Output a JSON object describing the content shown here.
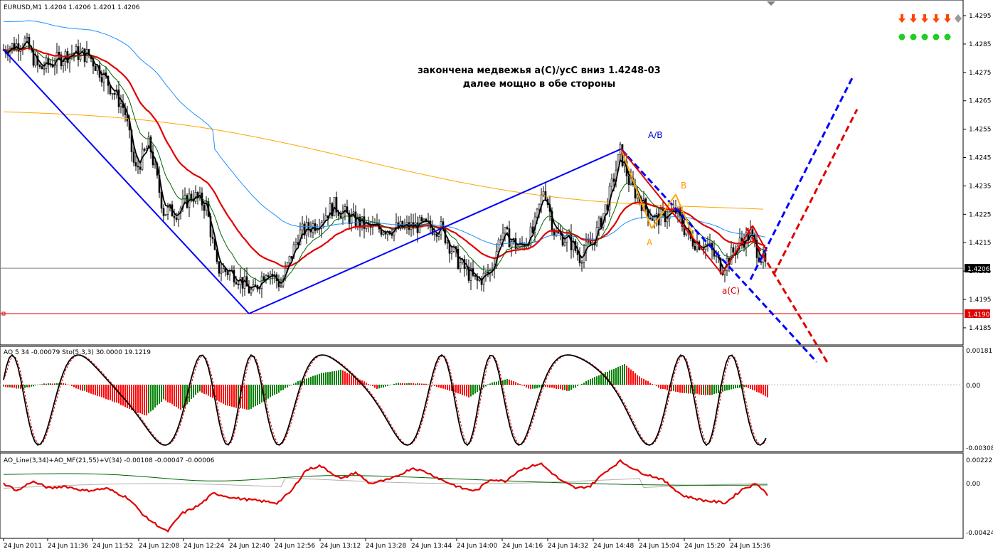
{
  "window": {
    "title_line": "EURUSD,M1  1.4204 1.4206 1.4201 1.4206"
  },
  "annotations": {
    "main_text_line1": "закончена медвежья a(C)/ycC вниз 1.4248-03",
    "main_text_line2": "далее мощно в обе стороны",
    "wave_AB": "A/B",
    "wave_A": "A",
    "wave_B": "B",
    "wave_aC": "a(C)"
  },
  "price_axis": {
    "ticks": [
      "1.4295",
      "1.4285",
      "1.4275",
      "1.4265",
      "1.4255",
      "1.4245",
      "1.4235",
      "1.4225",
      "1.4215",
      "1.4205",
      "1.4195",
      "1.4185"
    ],
    "current_price": "1.4206",
    "level_price": "1.4190"
  },
  "time_axis": {
    "ticks": [
      "24 Jun 2011",
      "24 Jun 11:36",
      "24 Jun 11:52",
      "24 Jun 12:08",
      "24 Jun 12:24",
      "24 Jun 12:40",
      "24 Jun 12:56",
      "24 Jun 13:12",
      "24 Jun 13:28",
      "24 Jun 13:44",
      "24 Jun 14:00",
      "24 Jun 14:16",
      "24 Jun 14:32",
      "24 Jun 14:48",
      "24 Jun 15:04",
      "24 Jun 15:20",
      "24 Jun 15:36"
    ]
  },
  "indicator1": {
    "label": "AO 5 34 -0.00079  Sto(5,3,3) 30.0000 19.1219",
    "axis_top": "0.00181",
    "axis_mid": "0.00",
    "axis_bottom": "-0.00308"
  },
  "indicator2": {
    "label": "AO_Line(3,34)+AO_MF(21,55)+V(34) -0.00108 -0.00047 -0.00006",
    "axis_top": "0.00222",
    "axis_mid": "0.00",
    "axis_bottom": "-0.00424"
  },
  "signals": {
    "arrows": [
      "down-arrow-icon",
      "down-arrow-icon",
      "down-arrow-icon",
      "down-arrow-icon",
      "down-arrow-icon"
    ],
    "dots": [
      "green-dot",
      "green-dot",
      "green-dot",
      "green-dot",
      "green-dot"
    ],
    "arrow_color": "#ff4500",
    "dot_color": "#22cc22"
  },
  "colors": {
    "up_bar": "#008000",
    "down_bar": "#ff0000",
    "trend_blue": "#0000ff",
    "ma_red": "#e00000",
    "ma_orange": "#ffa500",
    "ma_skyblue": "#1e90ff",
    "ma_green": "#006400",
    "level_red": "#e00000"
  },
  "chart_data": [
    {
      "type": "line",
      "title": "",
      "series": [
        {
          "name": "EURUSD,M1",
          "x": [
            "24 Jun 2011",
            "24 Jun 11:36",
            "24 Jun 11:52",
            "24 Jun 12:08",
            "24 Jun 12:24",
            "24 Jun 12:40",
            "24 Jun 12:56",
            "24 Jun 13:12",
            "24 Jun 13:28",
            "24 Jun 13:44",
            "24 Jun 14:00",
            "24 Jun 14:16",
            "24 Jun 14:32",
            "24 Jun 14:48",
            "24 Jun 15:04",
            "24 Jun 15:20",
            "24 Jun 15:36"
          ],
          "values": [
            1.428,
            1.4282,
            1.4272,
            1.424,
            1.4228,
            1.4205,
            1.4212,
            1.4226,
            1.422,
            1.422,
            1.4203,
            1.423,
            1.421,
            1.4244,
            1.4222,
            1.4206,
            1.4206
          ]
        }
      ],
      "ylim": [
        1.4181,
        1.4301
      ],
      "levels": [
        1.4206,
        1.419
      ]
    },
    {
      "type": "bar",
      "title": "",
      "series": [
        {
          "name": "AO",
          "values": [
            -0.0001,
            2e-05,
            -0.00015,
            -0.0012,
            -0.0007,
            -0.00085,
            -0.0006,
            0.0006,
            -0.0001,
            -8e-05,
            -0.0003,
            0.00045,
            -0.0002,
            0.0011,
            -0.00045,
            -0.0004,
            -0.00079
          ]
        }
      ],
      "ylim": [
        -0.00308,
        0.00181
      ]
    },
    {
      "type": "line",
      "title": "",
      "series": [
        {
          "name": "AO_Line",
          "values": [
            0.0,
            0.0,
            -0.001,
            -0.0038,
            -0.002,
            -0.0012,
            -0.0005,
            0.0012,
            0.001,
            0.0005,
            0.0005,
            0.0012,
            -0.0003,
            0.0015,
            -0.0004,
            -0.0008,
            -0.00108
          ]
        }
      ],
      "ylim": [
        -0.00424,
        0.00222
      ]
    }
  ]
}
